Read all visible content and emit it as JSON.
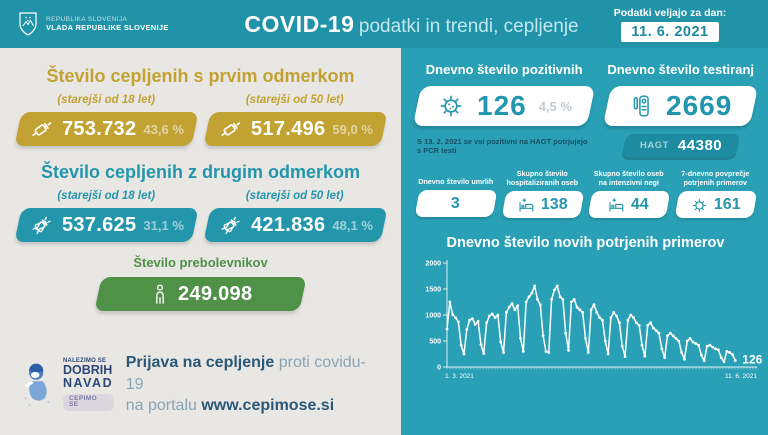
{
  "colors": {
    "header_teal": "#2093a9",
    "body_teal": "#29a0b6",
    "card_bg": "#e9e7e4",
    "gold": "#c2a233",
    "accent_teal": "#2496ac",
    "green": "#4f9146",
    "navy": "#2b5876"
  },
  "header": {
    "logo_line1": "REPUBLIKA SLOVENIJA",
    "logo_line2": "VLADA REPUBLIKE SLOVENIJE",
    "title_bold": "COVID-19",
    "title_rest": "podatki in trendi, cepljenje",
    "date_label": "Podatki veljajo za dan:",
    "date_value": "11. 6. 2021"
  },
  "left_panel": {
    "first_dose": {
      "title": "Število cepljenih s prvim odmerkom",
      "icon": "syringe-icon",
      "groups": [
        {
          "label": "(starejši od 18 let)",
          "value": "753.732",
          "percent": "43,6 %"
        },
        {
          "label": "(starejši od 50 let)",
          "value": "517.496",
          "percent": "59,0 %"
        }
      ]
    },
    "second_dose": {
      "title": "Število cepljenih z drugim odmerkom",
      "icon": "double-syringe-icon",
      "groups": [
        {
          "label": "(starejši od 18 let)",
          "value": "537.625",
          "percent": "31,1 %"
        },
        {
          "label": "(starejši od 50 let)",
          "value": "421.836",
          "percent": "48,1 %"
        }
      ]
    },
    "recovered": {
      "title": "Število prebolevnikov",
      "icon": "person-icon",
      "value": "249.098"
    },
    "campaign": {
      "logo_line1": "NALEZIMO SE",
      "logo_line2": "DOBRIH",
      "logo_line3": "NAVAD",
      "logo_badge": "CEPIMO SE",
      "cta_bold1": "Prijava na cepljenje",
      "cta_rest1": "proti covidu-19",
      "cta_rest2": "na portalu",
      "cta_link": "www.cepimose.si"
    }
  },
  "right_panel": {
    "positive": {
      "title": "Dnevno število pozitivnih",
      "icon": "virus-icon",
      "value": "126",
      "percent": "4,5 %",
      "note": "S 13. 2. 2021 se vsi pozitivni na HAGT potrjujejo s PCR testi"
    },
    "tests": {
      "title": "Dnevno število testiranj",
      "icon": "rapid-test-icon",
      "value": "2669",
      "hagt_label": "HAGT",
      "hagt_value": "44380"
    },
    "stats": [
      {
        "title": "Dnevno število umrlih",
        "value": "3",
        "icon": "none"
      },
      {
        "title": "Skupno število hospitaliziranih oseb",
        "value": "138",
        "icon": "bed-icon"
      },
      {
        "title": "Skupno število oseb na intenzivni negi",
        "value": "44",
        "icon": "icu-bed-icon"
      },
      {
        "title": "7-dnevno povprečje potrjenih primerov",
        "value": "161",
        "icon": "virus-icon"
      }
    ]
  },
  "chart_data": {
    "type": "line",
    "title": "Dnevno število novih potrjenih primerov",
    "xlabel": "",
    "ylabel": "",
    "ylim": [
      0,
      2000
    ],
    "yticks": [
      0,
      500,
      1000,
      1500,
      2000
    ],
    "x_start_label": "1. 3. 2021",
    "x_end_label": "11. 6. 2021",
    "end_value_label": "126",
    "legend": "none",
    "grid": "off",
    "values": [
      730,
      1250,
      1010,
      950,
      870,
      420,
      250,
      720,
      900,
      930,
      820,
      880,
      430,
      260,
      850,
      980,
      1020,
      950,
      1000,
      480,
      280,
      1050,
      1150,
      1220,
      1100,
      1180,
      550,
      300,
      1250,
      1350,
      1420,
      1560,
      1300,
      1200,
      600,
      300,
      280,
      1300,
      1480,
      1560,
      1350,
      1300,
      650,
      320,
      1250,
      1300,
      1150,
      1100,
      1050,
      550,
      280,
      1100,
      1200,
      1050,
      950,
      900,
      500,
      250,
      950,
      1050,
      980,
      850,
      400,
      200,
      900,
      1000,
      950,
      850,
      800,
      420,
      210,
      800,
      850,
      750,
      700,
      650,
      350,
      180,
      600,
      650,
      600,
      550,
      500,
      280,
      150,
      500,
      550,
      480,
      450,
      420,
      230,
      120,
      400,
      420,
      380,
      350,
      330,
      180,
      100,
      300,
      280,
      240,
      126
    ]
  }
}
